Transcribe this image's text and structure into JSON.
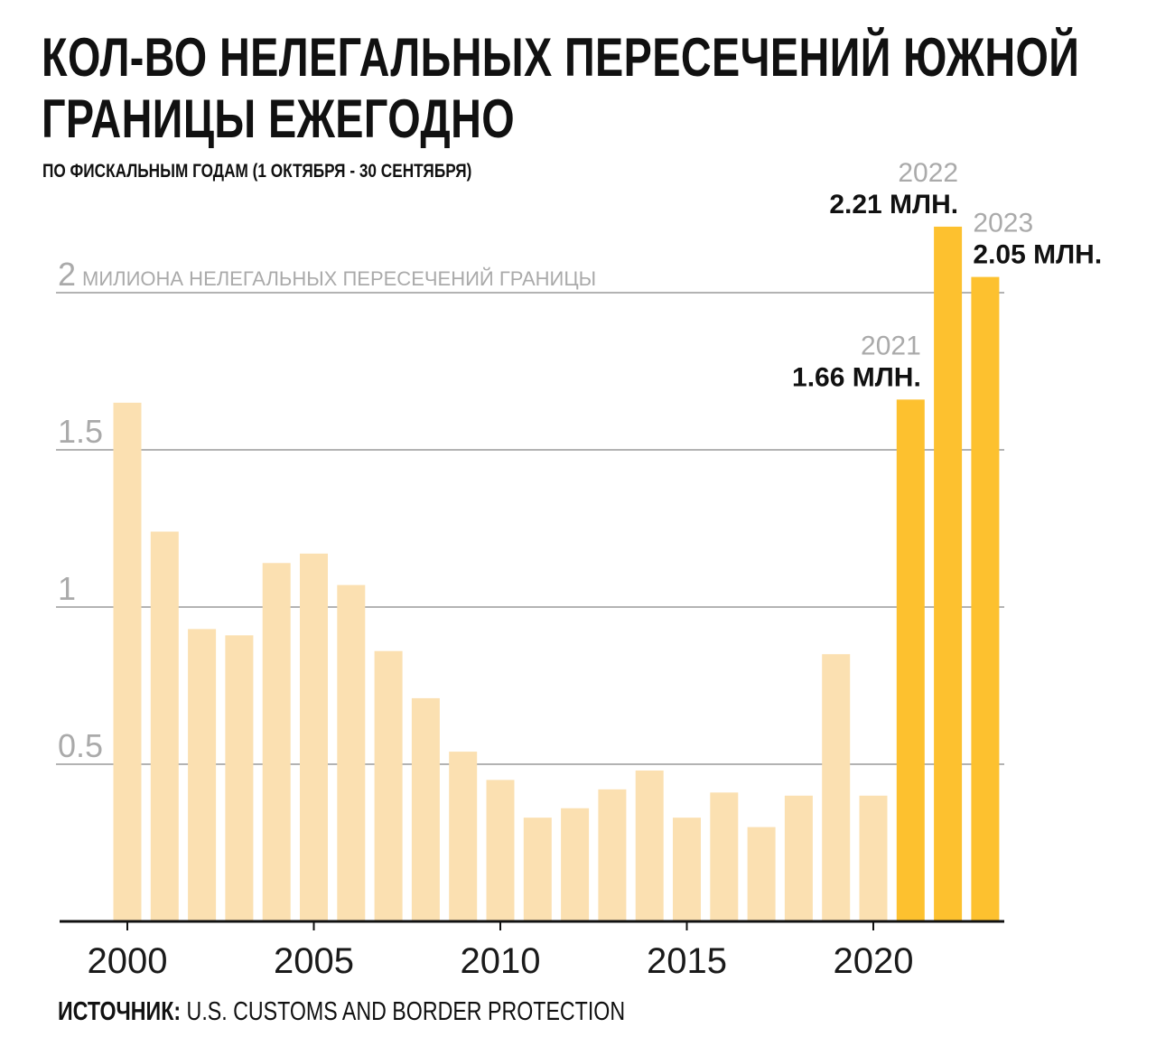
{
  "header": {
    "title_line1": "КОЛ-ВО НЕЛЕГАЛЬНЫХ ПЕРЕСЕЧЕНИЙ ЮЖНОЙ",
    "title_line2": "ГРАНИЦЫ ЕЖЕГОДНО",
    "subtitle": "ПО ФИСКАЛЬНЫМ ГОДАМ (1 ОКТЯБРЯ - 30 СЕНТЯБРЯ)"
  },
  "footer": {
    "source_label": "ИСТОЧНИК:",
    "source_text": " U.S. CUSTOMS AND BORDER PROTECTION"
  },
  "chart_data": {
    "type": "bar",
    "title": "КОЛ-ВО НЕЛЕГАЛЬНЫХ ПЕРЕСЕЧЕНИЙ ЮЖНОЙ ГРАНИЦЫ ЕЖЕГОДНО",
    "subtitle": "ПО ФИСКАЛЬНЫМ ГОДАМ (1 ОКТЯБРЯ - 30 СЕНТЯБРЯ)",
    "xlabel": "",
    "ylabel": "",
    "ylim": [
      0,
      2.3
    ],
    "grid": true,
    "categories": [
      2000,
      2001,
      2002,
      2003,
      2004,
      2005,
      2006,
      2007,
      2008,
      2009,
      2010,
      2011,
      2012,
      2013,
      2014,
      2015,
      2016,
      2017,
      2018,
      2019,
      2020,
      2021,
      2022,
      2023
    ],
    "values": [
      1.65,
      1.24,
      0.93,
      0.91,
      1.14,
      1.17,
      1.07,
      0.86,
      0.71,
      0.54,
      0.45,
      0.33,
      0.36,
      0.42,
      0.48,
      0.33,
      0.41,
      0.3,
      0.4,
      0.85,
      0.4,
      1.66,
      2.21,
      2.05
    ],
    "x_ticks": [
      "2000",
      "2005",
      "2010",
      "2015",
      "2020"
    ],
    "x_tick_values": [
      2000,
      2005,
      2010,
      2015,
      2020
    ],
    "y_ticks": [
      {
        "value": 0.5,
        "label": "0.5"
      },
      {
        "value": 1,
        "label": "1"
      },
      {
        "value": 1.5,
        "label": "1.5"
      },
      {
        "value": 2,
        "label": "2"
      }
    ],
    "y_top_note": "МИЛИОНА НЕЛЕГАЛЬНЫХ ПЕРЕСЕЧЕНИЙ ГРАНИЦЫ",
    "highlight_years": [
      2021,
      2022,
      2023
    ],
    "annotations": [
      {
        "year": 2021,
        "year_label": "2021",
        "value_label": "1.66 МЛН.",
        "align": "end"
      },
      {
        "year": 2022,
        "year_label": "2022",
        "value_label": "2.21 МЛН.",
        "align": "end"
      },
      {
        "year": 2023,
        "year_label": "2023",
        "value_label": "2.05 МЛН.",
        "align": "start"
      }
    ],
    "colors": {
      "bar": "#fbe0b1",
      "highlight": "#fdc12f",
      "grid": "#b3b3b3",
      "axis": "#111111"
    }
  }
}
